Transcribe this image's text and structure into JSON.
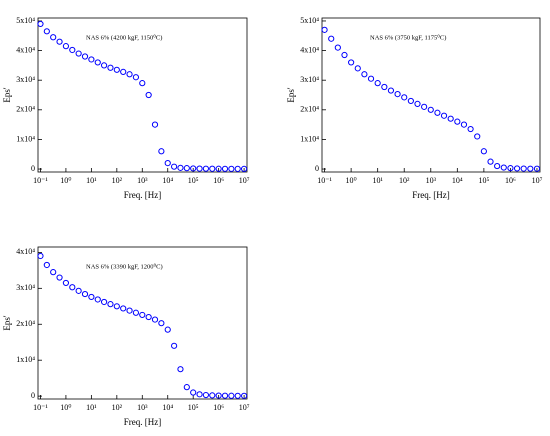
{
  "chart_data": [
    {
      "type": "scatter",
      "title": "NAS 6% (4200 kgF, 1150⁰C)",
      "x_label": "Freq. [Hz]",
      "y_label": "Eps'",
      "xscale": "log",
      "color": "#0000ff",
      "x": [
        0.1,
        0.178,
        0.316,
        0.562,
        1,
        1.78,
        3.16,
        5.62,
        10,
        17.8,
        31.6,
        56.2,
        100,
        178,
        316,
        562,
        1000,
        1780,
        3160,
        5620,
        10000,
        17800,
        31600,
        56200,
        100000,
        178000,
        316000,
        562000,
        1000000,
        1780000,
        3160000,
        5620000,
        10000000
      ],
      "values": [
        49000,
        46500,
        44500,
        43000,
        41500,
        40200,
        39000,
        38000,
        37000,
        36000,
        35000,
        34200,
        33500,
        32800,
        32000,
        31000,
        29000,
        25000,
        15000,
        6000,
        2000,
        800,
        400,
        300,
        200,
        150,
        120,
        100,
        90,
        80,
        70,
        60,
        50
      ],
      "xlim": [
        0.08,
        13000000
      ],
      "ylim": [
        -1000,
        51000
      ],
      "xticks": [
        {
          "value": 0.1,
          "label": "10⁻¹"
        },
        {
          "value": 1,
          "label": "10⁰"
        },
        {
          "value": 10,
          "label": "10¹"
        },
        {
          "value": 100,
          "label": "10²"
        },
        {
          "value": 1000,
          "label": "10³"
        },
        {
          "value": 10000,
          "label": "10⁴"
        },
        {
          "value": 100000,
          "label": "10⁵"
        },
        {
          "value": 1000000,
          "label": "10⁶"
        },
        {
          "value": 10000000,
          "label": "10⁷"
        }
      ],
      "yticks": [
        0,
        {
          "value": 10000,
          "label": "1x10⁴"
        },
        {
          "value": 20000,
          "label": "2x10⁴"
        },
        {
          "value": 30000,
          "label": "3x10⁴"
        },
        {
          "value": 40000,
          "label": "4x10⁴"
        },
        {
          "value": 50000,
          "label": "5x10⁴"
        }
      ]
    },
    {
      "type": "scatter",
      "title": "NAS 6% (3750 kgF, 1175⁰C)",
      "x_label": "Freq. [Hz]",
      "y_label": "Eps'",
      "xscale": "log",
      "color": "#0000ff",
      "x": [
        0.1,
        0.178,
        0.316,
        0.562,
        1,
        1.78,
        3.16,
        5.62,
        10,
        17.8,
        31.6,
        56.2,
        100,
        178,
        316,
        562,
        1000,
        1780,
        3160,
        5620,
        10000,
        17800,
        31600,
        56200,
        100000,
        178000,
        316000,
        562000,
        1000000,
        1780000,
        3160000,
        5620000,
        10000000
      ],
      "values": [
        47000,
        44000,
        41000,
        38500,
        36000,
        34000,
        32000,
        30500,
        29000,
        27700,
        26500,
        25300,
        24200,
        23000,
        22000,
        21000,
        20000,
        19000,
        18000,
        17000,
        16000,
        15000,
        13500,
        11000,
        6000,
        2500,
        1000,
        500,
        300,
        200,
        150,
        120,
        100
      ],
      "xlim": [
        0.08,
        13000000
      ],
      "ylim": [
        -1000,
        51000
      ],
      "xticks": [
        {
          "value": 0.1,
          "label": "10⁻¹"
        },
        {
          "value": 1,
          "label": "10⁰"
        },
        {
          "value": 10,
          "label": "10¹"
        },
        {
          "value": 100,
          "label": "10²"
        },
        {
          "value": 1000,
          "label": "10³"
        },
        {
          "value": 10000,
          "label": "10⁴"
        },
        {
          "value": 100000,
          "label": "10⁵"
        },
        {
          "value": 1000000,
          "label": "10⁶"
        },
        {
          "value": 10000000,
          "label": "10⁷"
        }
      ],
      "yticks": [
        0,
        {
          "value": 10000,
          "label": "1x10⁴"
        },
        {
          "value": 20000,
          "label": "2x10⁴"
        },
        {
          "value": 30000,
          "label": "3x10⁴"
        },
        {
          "value": 40000,
          "label": "4x10⁴"
        },
        {
          "value": 50000,
          "label": "5x10⁴"
        }
      ]
    },
    {
      "type": "scatter",
      "title": "NAS 6% (3390 kgF, 1200⁰C)",
      "x_label": "Freq. [Hz]",
      "y_label": "Eps'",
      "xscale": "log",
      "color": "#0000ff",
      "x": [
        0.1,
        0.178,
        0.316,
        0.562,
        1,
        1.78,
        3.16,
        5.62,
        10,
        17.8,
        31.6,
        56.2,
        100,
        178,
        316,
        562,
        1000,
        1780,
        3160,
        5620,
        10000,
        17800,
        31600,
        56200,
        100000,
        178000,
        316000,
        562000,
        1000000,
        1780000,
        3160000,
        5620000,
        10000000
      ],
      "values": [
        39000,
        36500,
        34500,
        33000,
        31500,
        30300,
        29300,
        28400,
        27600,
        26900,
        26200,
        25600,
        25000,
        24400,
        23800,
        23200,
        22600,
        22000,
        21300,
        20300,
        18500,
        14000,
        7500,
        2500,
        1000,
        500,
        300,
        200,
        150,
        120,
        100,
        90,
        80
      ],
      "xlim": [
        0.08,
        13000000
      ],
      "ylim": [
        -800,
        41500
      ],
      "xticks": [
        {
          "value": 0.1,
          "label": "10⁻¹"
        },
        {
          "value": 1,
          "label": "10⁰"
        },
        {
          "value": 10,
          "label": "10¹"
        },
        {
          "value": 100,
          "label": "10²"
        },
        {
          "value": 1000,
          "label": "10³"
        },
        {
          "value": 10000,
          "label": "10⁴"
        },
        {
          "value": 100000,
          "label": "10⁵"
        },
        {
          "value": 1000000,
          "label": "10⁶"
        },
        {
          "value": 10000000,
          "label": "10⁷"
        }
      ],
      "yticks": [
        0,
        {
          "value": 10000,
          "label": "1x10⁴"
        },
        {
          "value": 20000,
          "label": "2x10⁴"
        },
        {
          "value": 30000,
          "label": "3x10⁴"
        },
        {
          "value": 40000,
          "label": "4x10⁴"
        }
      ]
    }
  ]
}
